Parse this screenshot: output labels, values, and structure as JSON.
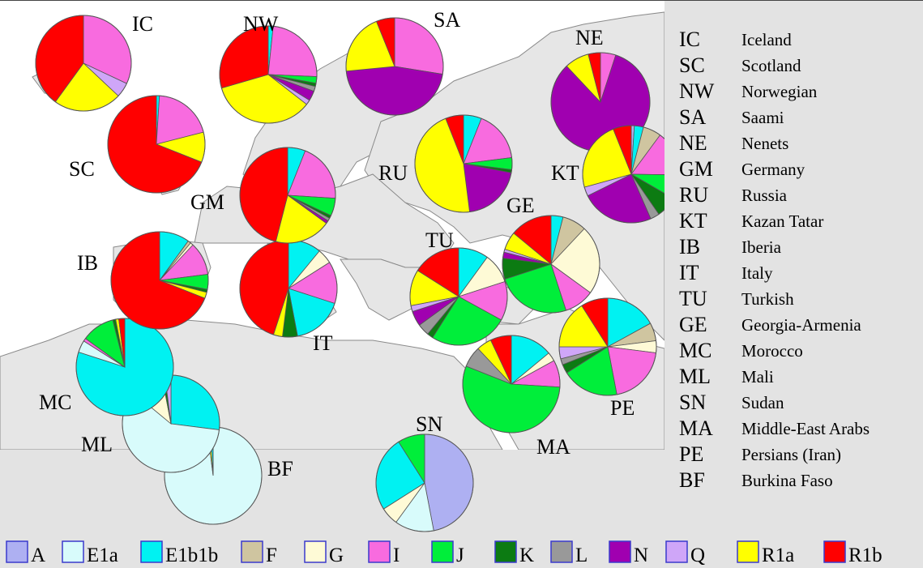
{
  "chart_data": {
    "type": "pie",
    "haplogroups": [
      {
        "code": "A",
        "color": "#aeb0f2"
      },
      {
        "code": "E1a",
        "color": "#d8fbfb"
      },
      {
        "code": "E1b1b",
        "color": "#00f2f2"
      },
      {
        "code": "F",
        "color": "#cfc5a0"
      },
      {
        "code": "G",
        "color": "#fefad6"
      },
      {
        "code": "I",
        "color": "#f86bdf"
      },
      {
        "code": "J",
        "color": "#00ee3a"
      },
      {
        "code": "K",
        "color": "#0c7b12"
      },
      {
        "code": "L",
        "color": "#999999"
      },
      {
        "code": "N",
        "color": "#a000b0"
      },
      {
        "code": "Q",
        "color": "#cfa6f8"
      },
      {
        "code": "R1a",
        "color": "#ffff00"
      },
      {
        "code": "R1b",
        "color": "#ff0000"
      }
    ],
    "populations": [
      {
        "code": "IC",
        "name": "Iceland",
        "slices": [
          [
            "I",
            32
          ],
          [
            "Q",
            5
          ],
          [
            "R1a",
            23
          ],
          [
            "R1b",
            40
          ]
        ]
      },
      {
        "code": "SC",
        "name": "Scotland",
        "slices": [
          [
            "E1b1b",
            1
          ],
          [
            "I",
            20
          ],
          [
            "R1a",
            10
          ],
          [
            "R1b",
            69
          ]
        ]
      },
      {
        "code": "NW",
        "name": "Norwegian",
        "slices": [
          [
            "E1b1b",
            1.5
          ],
          [
            "I",
            22
          ],
          [
            "J",
            2
          ],
          [
            "K",
            1
          ],
          [
            "L",
            1.5
          ],
          [
            "N",
            3
          ],
          [
            "Q",
            1.5
          ],
          [
            "R1a",
            32
          ],
          [
            "R1b",
            27
          ]
        ]
      },
      {
        "code": "SA",
        "name": "Saami",
        "slices": [
          [
            "I",
            27
          ],
          [
            "N",
            45
          ],
          [
            "R1a",
            20
          ],
          [
            "R1b",
            6
          ]
        ]
      },
      {
        "code": "NE",
        "name": "Nenets",
        "slices": [
          [
            "I",
            5
          ],
          [
            "N",
            83
          ],
          [
            "R1a",
            8
          ],
          [
            "R1b",
            4
          ]
        ]
      },
      {
        "code": "GM",
        "name": "Germany",
        "slices": [
          [
            "E1b1b",
            6
          ],
          [
            "I",
            20
          ],
          [
            "J",
            6
          ],
          [
            "K",
            1
          ],
          [
            "L",
            1
          ],
          [
            "N",
            1
          ],
          [
            "R1a",
            19
          ],
          [
            "R1b",
            46
          ]
        ]
      },
      {
        "code": "RU",
        "name": "Russia",
        "slices": [
          [
            "E1b1b",
            6
          ],
          [
            "I",
            17
          ],
          [
            "J",
            4
          ],
          [
            "K",
            1
          ],
          [
            "N",
            20
          ],
          [
            "R1a",
            46
          ],
          [
            "R1b",
            6
          ]
        ]
      },
      {
        "code": "KT",
        "name": "Kazan Tatar",
        "slices": [
          [
            "A",
            1
          ],
          [
            "E1b1b",
            3
          ],
          [
            "F",
            6
          ],
          [
            "I",
            15
          ],
          [
            "J",
            8
          ],
          [
            "K",
            7
          ],
          [
            "L",
            3
          ],
          [
            "N",
            24
          ],
          [
            "Q",
            3
          ],
          [
            "R1a",
            23
          ],
          [
            "R1b",
            6
          ]
        ]
      },
      {
        "code": "IB",
        "name": "Iberia",
        "slices": [
          [
            "E1b1b",
            10
          ],
          [
            "F",
            1
          ],
          [
            "G",
            1
          ],
          [
            "I",
            11
          ],
          [
            "J",
            5
          ],
          [
            "K",
            1
          ],
          [
            "R1a",
            2
          ],
          [
            "R1b",
            69
          ]
        ]
      },
      {
        "code": "IT",
        "name": "Italy",
        "slices": [
          [
            "E1b1b",
            11
          ],
          [
            "G",
            5
          ],
          [
            "I",
            14
          ],
          [
            "E1b1b",
            17
          ],
          [
            "K",
            5
          ],
          [
            "R1a",
            3
          ],
          [
            "R1b",
            45
          ]
        ]
      },
      {
        "code": "TU",
        "name": "Turkish",
        "slices": [
          [
            "E1b1b",
            10
          ],
          [
            "G",
            10
          ],
          [
            "I",
            13
          ],
          [
            "J",
            26
          ],
          [
            "K",
            2
          ],
          [
            "L",
            4
          ],
          [
            "N",
            5
          ],
          [
            "Q",
            2
          ],
          [
            "R1a",
            12
          ],
          [
            "R1b",
            16
          ]
        ]
      },
      {
        "code": "GE",
        "name": "Georgia-Armenia",
        "slices": [
          [
            "E1b1b",
            4
          ],
          [
            "F",
            8
          ],
          [
            "G",
            23
          ],
          [
            "I",
            10
          ],
          [
            "J",
            25
          ],
          [
            "K",
            7
          ],
          [
            "N",
            2
          ],
          [
            "Q",
            1
          ],
          [
            "R1a",
            6
          ],
          [
            "R1b",
            14
          ]
        ]
      },
      {
        "code": "MC",
        "name": "Morocco",
        "slices": [
          [
            "E1b1b",
            80
          ],
          [
            "E1a",
            4
          ],
          [
            "I",
            1
          ],
          [
            "J",
            11
          ],
          [
            "K",
            1
          ],
          [
            "R1a",
            1
          ],
          [
            "R1b",
            2
          ]
        ]
      },
      {
        "code": "ML",
        "name": "Mali",
        "slices": [
          [
            "E1b1b",
            27
          ],
          [
            "E1a",
            59
          ],
          [
            "G",
            11
          ],
          [
            "K",
            1
          ],
          [
            "Q",
            2
          ]
        ]
      },
      {
        "code": "SN",
        "name": "Sudan",
        "slices": [
          [
            "A",
            47
          ],
          [
            "E1a",
            13
          ],
          [
            "G",
            6
          ],
          [
            "E1b1b",
            25
          ],
          [
            "J",
            9
          ]
        ]
      },
      {
        "code": "MA",
        "name": "Middle-East Arabs",
        "slices": [
          [
            "E1b1b",
            14
          ],
          [
            "G",
            3
          ],
          [
            "I",
            9
          ],
          [
            "J",
            55
          ],
          [
            "L",
            7
          ],
          [
            "R1a",
            5
          ],
          [
            "R1b",
            7
          ]
        ]
      },
      {
        "code": "PE",
        "name": "Persians (Iran)",
        "slices": [
          [
            "E1b1b",
            17
          ],
          [
            "F",
            6
          ],
          [
            "G",
            4
          ],
          [
            "I",
            20
          ],
          [
            "J",
            19
          ],
          [
            "K",
            3
          ],
          [
            "L",
            2
          ],
          [
            "Q",
            4
          ],
          [
            "R1a",
            16
          ],
          [
            "R1b",
            9
          ]
        ]
      },
      {
        "code": "BF",
        "name": "Burkina Faso",
        "slices": [
          [
            "E1a",
            98
          ],
          [
            "R1a",
            1
          ],
          [
            "E1b1b",
            1
          ]
        ]
      }
    ]
  },
  "legend": [
    {
      "code": "IC",
      "name": "Iceland"
    },
    {
      "code": "SC",
      "name": "Scotland"
    },
    {
      "code": "NW",
      "name": "Norwegian"
    },
    {
      "code": "SA",
      "name": "Saami"
    },
    {
      "code": "NE",
      "name": "Nenets"
    },
    {
      "code": "GM",
      "name": "Germany"
    },
    {
      "code": "RU",
      "name": "Russia"
    },
    {
      "code": "KT",
      "name": "Kazan Tatar"
    },
    {
      "code": "IB",
      "name": "Iberia"
    },
    {
      "code": "IT",
      "name": "Italy"
    },
    {
      "code": "TU",
      "name": "Turkish"
    },
    {
      "code": "GE",
      "name": "Georgia-Armenia"
    },
    {
      "code": "MC",
      "name": "Morocco"
    },
    {
      "code": "ML",
      "name": "Mali"
    },
    {
      "code": "SN",
      "name": "Sudan"
    },
    {
      "code": "MA",
      "name": "Middle-East Arabs"
    },
    {
      "code": "PE",
      "name": "Persians (Iran)"
    },
    {
      "code": "BF",
      "name": "Burkina Faso"
    }
  ],
  "map_labels": [
    "IC",
    "SC",
    "NW",
    "SA",
    "NE",
    "GM",
    "RU",
    "KT",
    "IB",
    "IT",
    "TU",
    "GE",
    "MC",
    "ML",
    "SN",
    "MA",
    "PE",
    "BF"
  ],
  "colors": {
    "land": "#e6e6e6",
    "sea": "#ffffff",
    "background": "#e3e3e3",
    "border": "#7a7a7a"
  }
}
